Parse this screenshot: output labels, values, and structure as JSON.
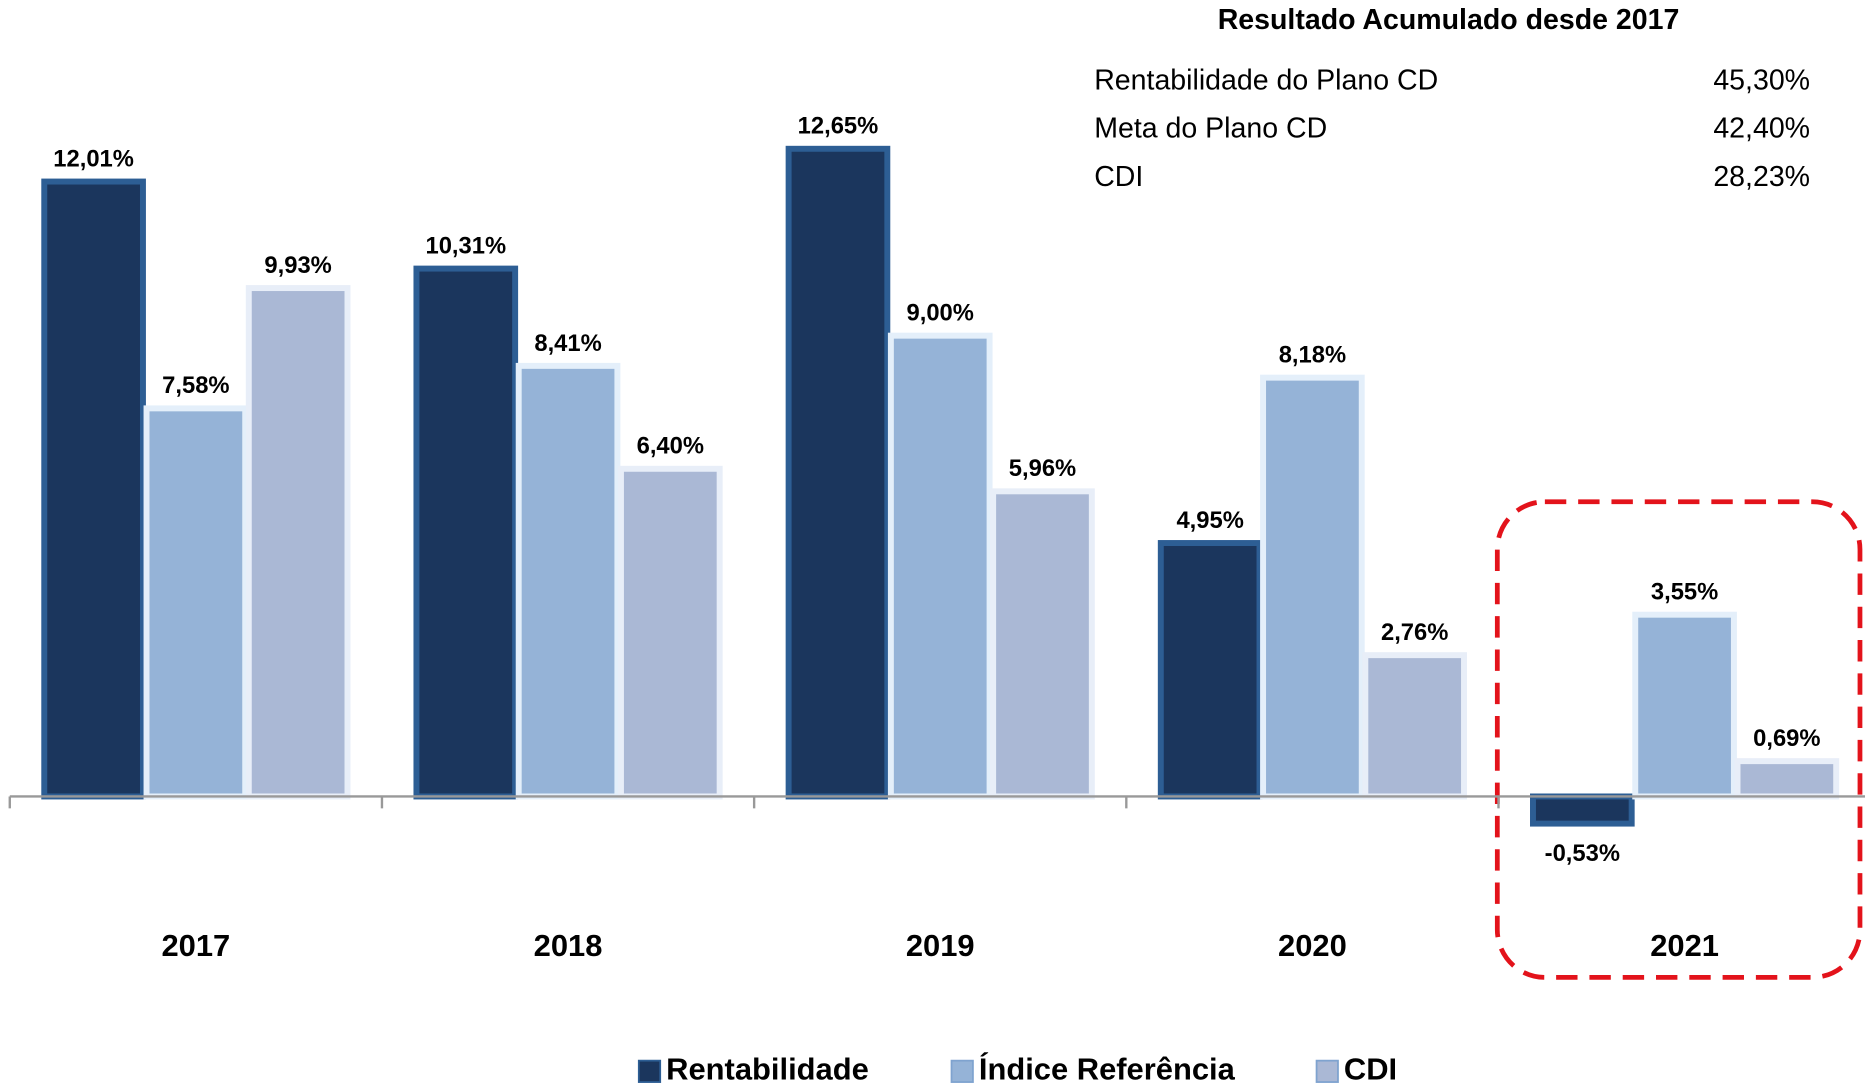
{
  "chart_data": {
    "type": "bar",
    "categories": [
      "2017",
      "2018",
      "2019",
      "2020",
      "2021"
    ],
    "series": [
      {
        "name": "Rentabilidade",
        "color": "#1b365d",
        "values": [
          12.01,
          10.31,
          12.65,
          4.95,
          -0.53
        ],
        "value_labels": [
          "12,01%",
          "10,31%",
          "12,65%",
          "4,95%",
          "-0,53%"
        ]
      },
      {
        "name": "Índice Referência",
        "color": "#95b3d7",
        "values": [
          7.58,
          8.41,
          9.0,
          8.18,
          3.55
        ],
        "value_labels": [
          "7,58%",
          "8,41%",
          "9,00%",
          "8,18%",
          "3,55%"
        ]
      },
      {
        "name": "CDI",
        "color": "#aab8d5",
        "values": [
          9.93,
          6.4,
          5.96,
          2.76,
          0.69
        ],
        "value_labels": [
          "9,93%",
          "6,40%",
          "5,96%",
          "2,76%",
          "0,69%"
        ]
      }
    ],
    "ylim": [
      -3,
      14
    ],
    "legend": "bottom",
    "summary": {
      "title": "Resultado Acumulado desde 2017",
      "rows": [
        {
          "label": "Rentabilidade do Plano CD",
          "value": "45,30%"
        },
        {
          "label": "Meta do Plano CD",
          "value": "42,40%"
        },
        {
          "label": "CDI",
          "value": "28,23%"
        }
      ]
    }
  }
}
